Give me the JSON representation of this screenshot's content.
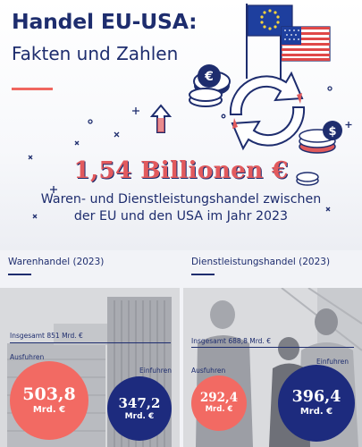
{
  "header": {
    "title": "Handel EU-USA:",
    "subtitle": "Fakten und Zahlen"
  },
  "headline": {
    "value": "1,54 Billionen €",
    "line1": "Waren- und Dienstleistungshandel zwischen",
    "line2": "der EU und den USA im Jahr 2023"
  },
  "goods": {
    "title": "Warenhandel (2023)",
    "total_label": "Insgesamt 851 Mrd. €",
    "exports_label": "Ausfuhren",
    "imports_label": "Einfuhren",
    "exports_value": "503,8",
    "exports_unit": "Mrd. €",
    "imports_value": "347,2",
    "imports_unit": "Mrd. €"
  },
  "services": {
    "title": "Dienstleistungshandel (2023)",
    "total_label": "Insgesamt 688,8 Mrd. €",
    "exports_label": "Ausfuhren",
    "imports_label": "Einfuhren",
    "exports_value": "292,4",
    "exports_unit": "Mrd. €",
    "imports_value": "396,4",
    "imports_unit": "Mrd. €"
  },
  "colors": {
    "navy": "#1d2b7e",
    "coral": "#f26a63"
  },
  "icons": [
    "eu-flag-icon",
    "us-flag-icon",
    "euro-coin-icon",
    "dollar-coin-icon",
    "exchange-arrows-icon",
    "arrow-up-icon"
  ]
}
